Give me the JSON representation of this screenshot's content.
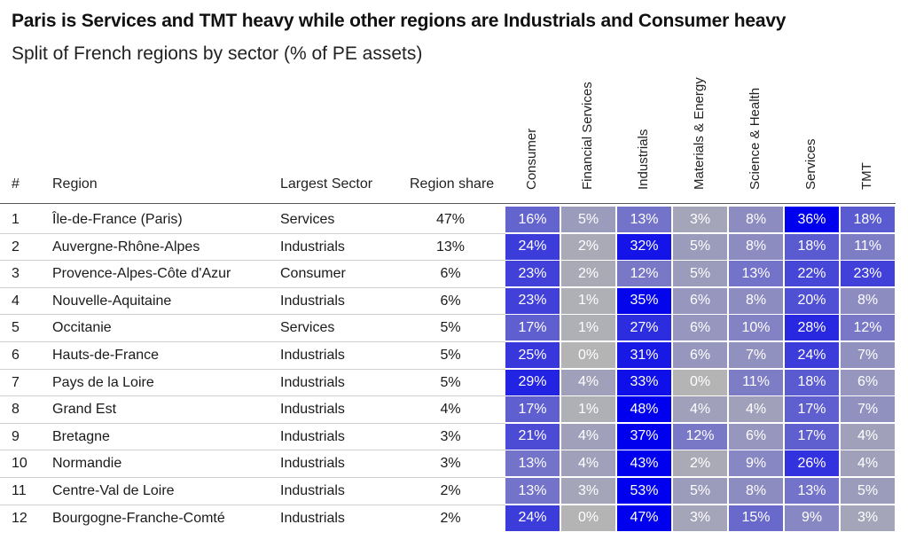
{
  "title": "Paris is Services and TMT heavy while other regions are Industrials and Consumer heavy",
  "subtitle": "Split of French regions by sector (% of PE assets)",
  "columns": {
    "rank": "#",
    "region": "Region",
    "largest_sector": "Largest Sector",
    "region_share": "Region share"
  },
  "sectors": [
    "Consumer",
    "Financial Services",
    "Industrials",
    "Materials & Energy",
    "Science & Health",
    "Services",
    "TMT"
  ],
  "colors": {
    "low": "#b4b4b4",
    "high": "#0000ee",
    "text": "#ffffff"
  },
  "chart_data": {
    "type": "heatmap",
    "title": "Paris is Services and TMT heavy while other regions are Industrials and Consumer heavy",
    "subtitle": "Split of French regions by sector (% of PE assets)",
    "x": [
      "Consumer",
      "Financial Services",
      "Industrials",
      "Materials & Energy",
      "Science & Health",
      "Services",
      "TMT"
    ],
    "value_format": "percent",
    "rows": [
      {
        "rank": "1",
        "region": "Île-de-France (Paris)",
        "largest": "Services",
        "share": "47%",
        "values": [
          16,
          5,
          13,
          3,
          8,
          36,
          18
        ]
      },
      {
        "rank": "2",
        "region": "Auvergne-Rhône-Alpes",
        "largest": "Industrials",
        "share": "13%",
        "values": [
          24,
          2,
          32,
          5,
          8,
          18,
          11
        ]
      },
      {
        "rank": "3",
        "region": "Provence-Alpes-Côte d'Azur",
        "largest": "Consumer",
        "share": "6%",
        "values": [
          23,
          2,
          12,
          5,
          13,
          22,
          23
        ]
      },
      {
        "rank": "4",
        "region": "Nouvelle-Aquitaine",
        "largest": "Industrials",
        "share": "6%",
        "values": [
          23,
          1,
          35,
          6,
          8,
          20,
          8
        ]
      },
      {
        "rank": "5",
        "region": "Occitanie",
        "largest": "Services",
        "share": "5%",
        "values": [
          17,
          1,
          27,
          6,
          10,
          28,
          12
        ]
      },
      {
        "rank": "6",
        "region": "Hauts-de-France",
        "largest": "Industrials",
        "share": "5%",
        "values": [
          25,
          0,
          31,
          6,
          7,
          24,
          7
        ]
      },
      {
        "rank": "7",
        "region": "Pays de la Loire",
        "largest": "Industrials",
        "share": "5%",
        "values": [
          29,
          4,
          33,
          0,
          11,
          18,
          6
        ]
      },
      {
        "rank": "8",
        "region": "Grand Est",
        "largest": "Industrials",
        "share": "4%",
        "values": [
          17,
          1,
          48,
          4,
          4,
          17,
          7
        ]
      },
      {
        "rank": "9",
        "region": "Bretagne",
        "largest": "Industrials",
        "share": "3%",
        "values": [
          21,
          4,
          37,
          12,
          6,
          17,
          4
        ]
      },
      {
        "rank": "10",
        "region": "Normandie",
        "largest": "Industrials",
        "share": "3%",
        "values": [
          13,
          4,
          43,
          2,
          9,
          26,
          4
        ]
      },
      {
        "rank": "11",
        "region": "Centre-Val de Loire",
        "largest": "Industrials",
        "share": "2%",
        "values": [
          13,
          3,
          53,
          5,
          8,
          13,
          5
        ]
      },
      {
        "rank": "12",
        "region": "Bourgogne-Franche-Comté",
        "largest": "Industrials",
        "share": "2%",
        "values": [
          24,
          0,
          47,
          3,
          15,
          9,
          3
        ]
      }
    ]
  }
}
